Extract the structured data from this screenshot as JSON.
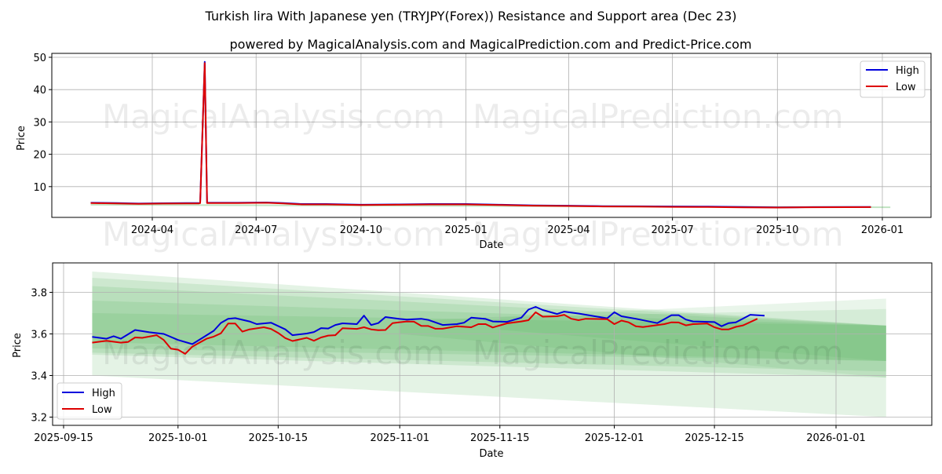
{
  "title": "Turkish lira With Japanese yen (TRYJPY(Forex)) Resistance and Support area (Dec 23)",
  "subtitle": "powered by MagicalAnalysis.com and MagicalPrediction.com and Predict-Price.com",
  "watermarks": [
    "MagicalAnalysis.com",
    "MagicalPrediction.com"
  ],
  "colors": {
    "high": "#0000dd",
    "low": "#dd0000",
    "band": "#4caf50",
    "grid": "#b0b0b0"
  },
  "chart_data": [
    {
      "type": "line",
      "title": "",
      "xlabel": "Date",
      "ylabel": "Price",
      "ylim": [
        0,
        50
      ],
      "yticks": [
        "10",
        "20",
        "30",
        "40",
        "50"
      ],
      "ytick_values": [
        10,
        20,
        30,
        40,
        50
      ],
      "xticks": [
        "2024-04",
        "2024-07",
        "2024-10",
        "2025-01",
        "2025-04",
        "2025-07",
        "2025-10",
        "2026-01"
      ],
      "xtick_dates": [
        "2024-04-01",
        "2024-07-01",
        "2024-10-01",
        "2025-01-01",
        "2025-04-01",
        "2025-07-01",
        "2025-10-01",
        "2026-01-01"
      ],
      "grid": true,
      "legend": "top-right",
      "legend_labels": [
        "High",
        "Low"
      ],
      "support_line": {
        "x": [
          "2024-02-07",
          "2026-01-08"
        ],
        "values": [
          4.4,
          3.6
        ]
      },
      "x": [
        "2024-02-07",
        "2024-03-01",
        "2024-03-20",
        "2024-04-10",
        "2024-05-01",
        "2024-05-12",
        "2024-05-13",
        "2024-05-17",
        "2024-05-19",
        "2024-06-15",
        "2024-07-10",
        "2024-07-25",
        "2024-08-10",
        "2024-09-01",
        "2024-10-01",
        "2024-11-01",
        "2024-12-01",
        "2025-01-01",
        "2025-02-01",
        "2025-03-01",
        "2025-04-01",
        "2025-05-01",
        "2025-06-01",
        "2025-07-01",
        "2025-08-01",
        "2025-09-01",
        "2025-10-01",
        "2025-11-01",
        "2025-12-01",
        "2025-12-22"
      ],
      "series": [
        {
          "name": "High",
          "values": [
            5.0,
            4.9,
            4.75,
            4.85,
            4.9,
            4.9,
            5.0,
            48.6,
            5.0,
            5.0,
            5.1,
            4.9,
            4.6,
            4.6,
            4.4,
            4.5,
            4.6,
            4.6,
            4.4,
            4.2,
            4.1,
            3.95,
            3.9,
            3.85,
            3.8,
            3.7,
            3.57,
            3.67,
            3.7,
            3.69
          ]
        },
        {
          "name": "Low",
          "values": [
            4.9,
            4.8,
            4.65,
            4.75,
            4.8,
            4.8,
            4.9,
            48.2,
            4.9,
            4.9,
            5.0,
            4.8,
            4.5,
            4.5,
            4.3,
            4.4,
            4.5,
            4.5,
            4.3,
            4.1,
            4.0,
            3.85,
            3.8,
            3.75,
            3.7,
            3.6,
            3.52,
            3.62,
            3.65,
            3.67
          ]
        }
      ]
    },
    {
      "type": "line",
      "title": "",
      "xlabel": "Date",
      "ylabel": "Price",
      "ylim": [
        3.15,
        3.94
      ],
      "yticks": [
        "3.2",
        "3.4",
        "3.6",
        "3.8"
      ],
      "ytick_values": [
        3.2,
        3.4,
        3.6,
        3.8
      ],
      "xticks": [
        "2025-09-15",
        "2025-10-01",
        "2025-10-15",
        "2025-11-01",
        "2025-11-15",
        "2025-12-01",
        "2025-12-15",
        "2026-01-01"
      ],
      "xtick_dates": [
        "2025-09-15",
        "2025-10-01",
        "2025-10-15",
        "2025-11-01",
        "2025-11-15",
        "2025-12-01",
        "2025-12-15",
        "2026-01-01"
      ],
      "grid": true,
      "legend": "bottom-left",
      "legend_labels": [
        "High",
        "Low"
      ],
      "bands": [
        {
          "x": [
            "2025-09-19",
            "2026-01-08"
          ],
          "upper": [
            3.9,
            3.64
          ],
          "lower": [
            3.4,
            3.2
          ],
          "opacity": 0.15
        },
        {
          "x": [
            "2025-09-19",
            "2026-01-08"
          ],
          "upper": [
            3.87,
            3.64
          ],
          "lower": [
            3.5,
            3.39
          ],
          "opacity": 0.15
        },
        {
          "x": [
            "2025-09-19",
            "2026-01-08"
          ],
          "upper": [
            3.83,
            3.64
          ],
          "lower": [
            3.51,
            3.42
          ],
          "opacity": 0.15
        },
        {
          "x": [
            "2025-09-19",
            "2026-01-08"
          ],
          "upper": [
            3.76,
            3.64
          ],
          "lower": [
            3.53,
            3.47
          ],
          "opacity": 0.15
        },
        {
          "x": [
            "2025-09-19",
            "2026-01-08"
          ],
          "upper": [
            3.7,
            3.64
          ],
          "lower": [
            3.56,
            3.47
          ],
          "opacity": 0.15
        },
        {
          "x": [
            "2025-11-01",
            "2026-01-08"
          ],
          "upper": [
            3.66,
            3.77
          ],
          "lower": [
            3.6,
            3.39
          ],
          "opacity": 0.12
        },
        {
          "x": [
            "2025-11-15",
            "2026-01-08"
          ],
          "upper": [
            3.68,
            3.72
          ],
          "lower": [
            3.62,
            3.47
          ],
          "opacity": 0.12
        }
      ],
      "series": [
        {
          "name": "High",
          "x": [
            "2025-09-19",
            "2025-09-21",
            "2025-09-22",
            "2025-09-23",
            "2025-09-25",
            "2025-09-27",
            "2025-09-29",
            "2025-10-01",
            "2025-10-03",
            "2025-10-06",
            "2025-10-07",
            "2025-10-08",
            "2025-10-09",
            "2025-10-11",
            "2025-10-12",
            "2025-10-14",
            "2025-10-16",
            "2025-10-17",
            "2025-10-19",
            "2025-10-20",
            "2025-10-21",
            "2025-10-22",
            "2025-10-23",
            "2025-10-24",
            "2025-10-26",
            "2025-10-27",
            "2025-10-28",
            "2025-10-29",
            "2025-10-30",
            "2025-11-01",
            "2025-11-02",
            "2025-11-04",
            "2025-11-05",
            "2025-11-07",
            "2025-11-09",
            "2025-11-10",
            "2025-11-11",
            "2025-11-13",
            "2025-11-14",
            "2025-11-16",
            "2025-11-18",
            "2025-11-19",
            "2025-11-20",
            "2025-11-21",
            "2025-11-23",
            "2025-11-24",
            "2025-11-26",
            "2025-11-30",
            "2025-12-01",
            "2025-12-02",
            "2025-12-04",
            "2025-12-07",
            "2025-12-09",
            "2025-12-10",
            "2025-12-11",
            "2025-12-12",
            "2025-12-15",
            "2025-12-16",
            "2025-12-17",
            "2025-12-18",
            "2025-12-20",
            "2025-12-22"
          ],
          "values": [
            3.586,
            3.577,
            3.589,
            3.577,
            3.619,
            3.608,
            3.6,
            3.571,
            3.551,
            3.615,
            3.653,
            3.673,
            3.676,
            3.66,
            3.647,
            3.654,
            3.622,
            3.594,
            3.602,
            3.609,
            3.628,
            3.626,
            3.643,
            3.651,
            3.647,
            3.688,
            3.643,
            3.652,
            3.681,
            3.672,
            3.669,
            3.673,
            3.667,
            3.643,
            3.647,
            3.654,
            3.678,
            3.672,
            3.66,
            3.658,
            3.678,
            3.717,
            3.73,
            3.715,
            3.696,
            3.707,
            3.698,
            3.675,
            3.704,
            3.685,
            3.673,
            3.652,
            3.69,
            3.69,
            3.669,
            3.66,
            3.657,
            3.637,
            3.652,
            3.656,
            3.692,
            3.688
          ]
        },
        {
          "name": "Low",
          "x": [
            "2025-09-19",
            "2025-09-21",
            "2025-09-23",
            "2025-09-24",
            "2025-09-25",
            "2025-09-26",
            "2025-09-28",
            "2025-09-29",
            "2025-09-30",
            "2025-10-01",
            "2025-10-02",
            "2025-10-03",
            "2025-10-05",
            "2025-10-06",
            "2025-10-07",
            "2025-10-08",
            "2025-10-09",
            "2025-10-10",
            "2025-10-11",
            "2025-10-13",
            "2025-10-14",
            "2025-10-15",
            "2025-10-16",
            "2025-10-17",
            "2025-10-19",
            "2025-10-20",
            "2025-10-21",
            "2025-10-22",
            "2025-10-23",
            "2025-10-24",
            "2025-10-26",
            "2025-10-27",
            "2025-10-28",
            "2025-10-29",
            "2025-10-30",
            "2025-10-31",
            "2025-11-02",
            "2025-11-03",
            "2025-11-04",
            "2025-11-05",
            "2025-11-06",
            "2025-11-07",
            "2025-11-09",
            "2025-11-11",
            "2025-11-12",
            "2025-11-13",
            "2025-11-14",
            "2025-11-16",
            "2025-11-18",
            "2025-11-19",
            "2025-11-20",
            "2025-11-21",
            "2025-11-23",
            "2025-11-24",
            "2025-11-25",
            "2025-11-26",
            "2025-11-27",
            "2025-11-30",
            "2025-12-01",
            "2025-12-02",
            "2025-12-03",
            "2025-12-04",
            "2025-12-05",
            "2025-12-08",
            "2025-12-09",
            "2025-12-10",
            "2025-12-11",
            "2025-12-12",
            "2025-12-14",
            "2025-12-15",
            "2025-12-16",
            "2025-12-17",
            "2025-12-18",
            "2025-12-19",
            "2025-12-21"
          ],
          "values": [
            3.558,
            3.567,
            3.558,
            3.561,
            3.583,
            3.581,
            3.594,
            3.571,
            3.529,
            3.524,
            3.504,
            3.539,
            3.577,
            3.587,
            3.603,
            3.65,
            3.65,
            3.611,
            3.622,
            3.632,
            3.624,
            3.605,
            3.58,
            3.566,
            3.581,
            3.567,
            3.583,
            3.592,
            3.594,
            3.627,
            3.624,
            3.632,
            3.622,
            3.618,
            3.619,
            3.652,
            3.66,
            3.659,
            3.639,
            3.638,
            3.625,
            3.625,
            3.637,
            3.632,
            3.647,
            3.647,
            3.631,
            3.651,
            3.66,
            3.666,
            3.704,
            3.683,
            3.685,
            3.692,
            3.673,
            3.666,
            3.673,
            3.671,
            3.647,
            3.664,
            3.656,
            3.637,
            3.633,
            3.647,
            3.656,
            3.655,
            3.641,
            3.647,
            3.65,
            3.632,
            3.622,
            3.622,
            3.634,
            3.641,
            3.673
          ]
        }
      ]
    }
  ]
}
